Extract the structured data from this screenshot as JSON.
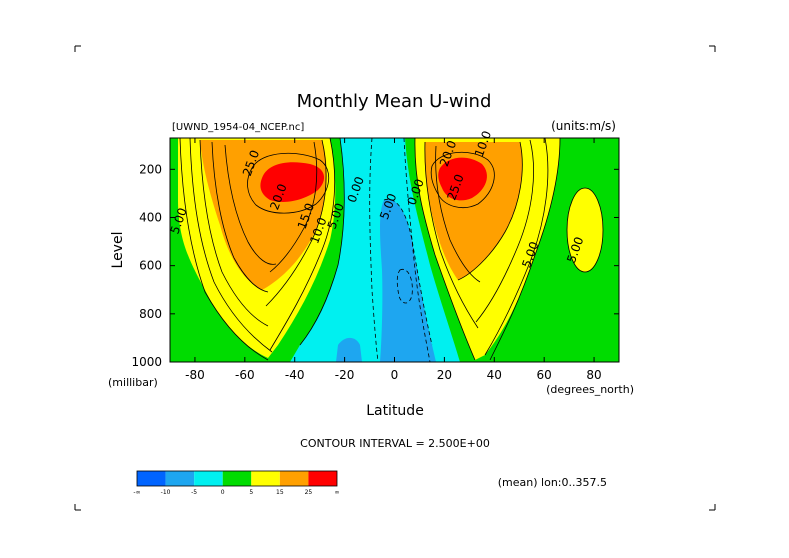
{
  "chart_data": {
    "type": "contour",
    "title": "Monthly Mean U-wind",
    "dataset": "[UWND_1954-04_NCEP.nc]",
    "units": "(units:m/s)",
    "xlabel": "Latitude",
    "x_unit": "(degrees_north)",
    "ylabel": "Level",
    "y_unit": "(millibar)",
    "xlim": [
      -90,
      90
    ],
    "ylim": [
      1000,
      70
    ],
    "y_reversed": true,
    "x_ticks": [
      -80,
      -60,
      -40,
      -20,
      0,
      20,
      40,
      60,
      80
    ],
    "y_ticks": [
      200,
      400,
      600,
      800,
      1000
    ],
    "contour_interval_text": "CONTOUR INTERVAL = 2.500E+00",
    "footer_note": "(mean) lon:0..357.5",
    "colorbar": {
      "colors": [
        "#0064ff",
        "#1ea6f0",
        "#00f0f0",
        "#00dc00",
        "#ffff00",
        "#ffa000",
        "#ff0000"
      ],
      "labels": [
        "-∞",
        "-10",
        "-5",
        "0",
        "5",
        "15",
        "25",
        "∞"
      ]
    },
    "contour_labels": [
      {
        "text": "5.00",
        "lat": -85,
        "level": 420
      },
      {
        "text": "25.0",
        "lat": -56,
        "level": 180
      },
      {
        "text": "20.0",
        "lat": -45,
        "level": 320
      },
      {
        "text": "15.0",
        "lat": -34,
        "level": 400
      },
      {
        "text": "10.0",
        "lat": -29,
        "level": 460
      },
      {
        "text": "5.00",
        "lat": -22,
        "level": 400
      },
      {
        "text": "0.00",
        "lat": -14,
        "level": 290
      },
      {
        "text": "5.00",
        "lat": -1,
        "level": 360
      },
      {
        "text": "0.00",
        "lat": 10,
        "level": 300
      },
      {
        "text": "10.0",
        "lat": 37,
        "level": 100
      },
      {
        "text": "20.0",
        "lat": 23,
        "level": 140
      },
      {
        "text": "25.0",
        "lat": 26,
        "level": 280
      },
      {
        "text": "5.00",
        "lat": 56,
        "level": 560
      },
      {
        "text": "5.00",
        "lat": 74,
        "level": 540
      }
    ]
  }
}
